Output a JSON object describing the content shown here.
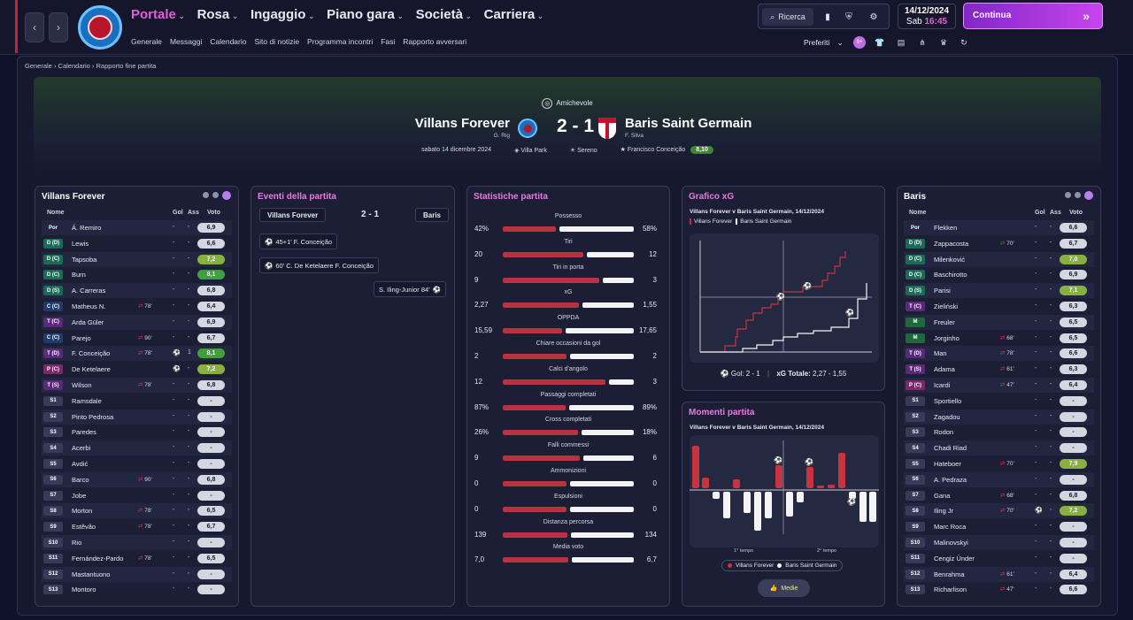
{
  "topbar": {
    "nav_back": "‹",
    "nav_forward": "›",
    "menu": [
      {
        "label": "Portale",
        "active": true
      },
      {
        "label": "Rosa",
        "active": false
      },
      {
        "label": "Ingaggio",
        "active": false
      },
      {
        "label": "Piano gara",
        "active": false
      },
      {
        "label": "Società",
        "active": false
      },
      {
        "label": "Carriera",
        "active": false
      }
    ],
    "submenu": [
      "Generale",
      "Messaggi",
      "Calendario",
      "Sito di notizie",
      "Programma incontri",
      "Fasi",
      "Rapporto avversari"
    ],
    "search_label": "Ricerca",
    "date": "14/12/2024",
    "day": "Sab",
    "time": "16:45",
    "continue_label": "Continua",
    "favorites_label": "Preferiti",
    "badge": "9+"
  },
  "breadcrumb": [
    "Generale",
    "Calendario",
    "Rapporto fine partita"
  ],
  "match": {
    "competition": "Amichevole",
    "home_team": "Villans Forever",
    "home_coach": "G. Rig",
    "away_team": "Baris Saint Germain",
    "away_coach": "F. Silva",
    "score": "2 - 1",
    "date": "sabato 14 dicembre 2024",
    "stadium": "Villa Park",
    "weather": "Sereno",
    "motm": "Francisco Conceição",
    "motm_rating": "8,10"
  },
  "home_panel": {
    "title": "Villans Forever",
    "headers": {
      "name": "Nome",
      "gol": "Gol",
      "ass": "Ass",
      "voto": "Voto"
    },
    "players": [
      {
        "pos": "Por",
        "kind": "gk",
        "name": "Á. Remiro",
        "sub": "",
        "gol": "-",
        "ass": "-",
        "vote": "6,9",
        "vc": ""
      },
      {
        "pos": "D (D)",
        "kind": "d",
        "name": "Lewis",
        "sub": "",
        "gol": "-",
        "ass": "-",
        "vote": "6,6",
        "vc": ""
      },
      {
        "pos": "D (C)",
        "kind": "d",
        "name": "Tapsoba",
        "sub": "",
        "gol": "-",
        "ass": "-",
        "vote": "7,2",
        "vc": "g1"
      },
      {
        "pos": "D (C)",
        "kind": "d",
        "name": "Burn",
        "sub": "",
        "gol": "-",
        "ass": "-",
        "vote": "8,1",
        "vc": "g2"
      },
      {
        "pos": "D (S)",
        "kind": "d",
        "name": "A. Carreras",
        "sub": "",
        "gol": "-",
        "ass": "-",
        "vote": "6,8",
        "vc": ""
      },
      {
        "pos": "C (C)",
        "kind": "c",
        "name": "Matheus N.",
        "sub": "78'",
        "gol": "-",
        "ass": "-",
        "vote": "6,4",
        "vc": ""
      },
      {
        "pos": "T (C)",
        "kind": "t",
        "name": "Arda Güler",
        "sub": "",
        "gol": "-",
        "ass": "-",
        "vote": "6,9",
        "vc": ""
      },
      {
        "pos": "C (C)",
        "kind": "c",
        "name": "Parejo",
        "sub": "90'",
        "gol": "-",
        "ass": "-",
        "vote": "6,7",
        "vc": ""
      },
      {
        "pos": "T (D)",
        "kind": "t",
        "name": "F. Conceição",
        "sub": "78'",
        "gol": "⚽",
        "ass": "1",
        "vote": "8,1",
        "vc": "g2"
      },
      {
        "pos": "P (C)",
        "kind": "p",
        "name": "De Ketelaere",
        "sub": "",
        "gol": "⚽",
        "ass": "-",
        "vote": "7,2",
        "vc": "g1"
      },
      {
        "pos": "T (S)",
        "kind": "t",
        "name": "Wilson",
        "sub": "78'",
        "gol": "-",
        "ass": "-",
        "vote": "6,8",
        "vc": ""
      },
      {
        "pos": "S1",
        "kind": "s",
        "name": "Ramsdale",
        "sub": "",
        "gol": "-",
        "ass": "-",
        "vote": "-",
        "vc": ""
      },
      {
        "pos": "S2",
        "kind": "s",
        "name": "Pinto Pedrosa",
        "sub": "",
        "gol": "-",
        "ass": "-",
        "vote": "-",
        "vc": ""
      },
      {
        "pos": "S3",
        "kind": "s",
        "name": "Paredes",
        "sub": "",
        "gol": "-",
        "ass": "-",
        "vote": "-",
        "vc": ""
      },
      {
        "pos": "S4",
        "kind": "s",
        "name": "Acerbi",
        "sub": "",
        "gol": "-",
        "ass": "-",
        "vote": "-",
        "vc": ""
      },
      {
        "pos": "S5",
        "kind": "s",
        "name": "Avdić",
        "sub": "",
        "gol": "-",
        "ass": "-",
        "vote": "-",
        "vc": ""
      },
      {
        "pos": "S6",
        "kind": "s",
        "name": "Barco",
        "sub": "90'",
        "gol": "-",
        "ass": "-",
        "vote": "6,8",
        "vc": ""
      },
      {
        "pos": "S7",
        "kind": "s",
        "name": "Jobe",
        "sub": "",
        "gol": "-",
        "ass": "-",
        "vote": "-",
        "vc": ""
      },
      {
        "pos": "S8",
        "kind": "s",
        "name": "Morton",
        "sub": "78'",
        "gol": "-",
        "ass": "-",
        "vote": "6,5",
        "vc": ""
      },
      {
        "pos": "S9",
        "kind": "s",
        "name": "Estêvão",
        "sub": "78'",
        "gol": "-",
        "ass": "-",
        "vote": "6,7",
        "vc": ""
      },
      {
        "pos": "S10",
        "kind": "s",
        "name": "Rio",
        "sub": "",
        "gol": "-",
        "ass": "-",
        "vote": "-",
        "vc": ""
      },
      {
        "pos": "S11",
        "kind": "s",
        "name": "Fernández-Pardo",
        "sub": "78'",
        "gol": "-",
        "ass": "-",
        "vote": "6,5",
        "vc": ""
      },
      {
        "pos": "S12",
        "kind": "s",
        "name": "Mastantuono",
        "sub": "",
        "gol": "-",
        "ass": "-",
        "vote": "-",
        "vc": ""
      },
      {
        "pos": "S13",
        "kind": "s",
        "name": "Montoro",
        "sub": "",
        "gol": "-",
        "ass": "-",
        "vote": "-",
        "vc": ""
      }
    ]
  },
  "events": {
    "title": "Eventi della partita",
    "home": "Villans Forever",
    "score": "2 - 1",
    "away": "Baris",
    "items": [
      {
        "side": "home",
        "text": "45+1' F. Conceição"
      },
      {
        "side": "home",
        "text": "60' C. De Ketelaere F. Conceição"
      },
      {
        "side": "away",
        "text": "S. Iling-Junior 84'"
      }
    ]
  },
  "stats": {
    "title": "Statistiche partita",
    "rows": [
      {
        "label": "Possesso",
        "home": "42%",
        "away": "58%",
        "h": 42,
        "a": 58
      },
      {
        "label": "Tiri",
        "home": "20",
        "away": "12",
        "h": 20,
        "a": 12
      },
      {
        "label": "Tiri in porta",
        "home": "9",
        "away": "3",
        "h": 9,
        "a": 3
      },
      {
        "label": "xG",
        "home": "2,27",
        "away": "1,55",
        "h": 2.27,
        "a": 1.55
      },
      {
        "label": "OPPDA",
        "home": "15,59",
        "away": "17,65",
        "h": 15.59,
        "a": 17.65
      },
      {
        "label": "Chiare occasioni da gol",
        "home": "2",
        "away": "2",
        "h": 2,
        "a": 2
      },
      {
        "label": "Calci d'angolo",
        "home": "12",
        "away": "3",
        "h": 12,
        "a": 3
      },
      {
        "label": "Passaggi completati",
        "home": "87%",
        "away": "89%",
        "h": 87,
        "a": 89
      },
      {
        "label": "Cross completati",
        "home": "26%",
        "away": "18%",
        "h": 26,
        "a": 18
      },
      {
        "label": "Falli commessi",
        "home": "9",
        "away": "6",
        "h": 9,
        "a": 6
      },
      {
        "label": "Ammonizioni",
        "home": "0",
        "away": "0",
        "h": 0,
        "a": 0
      },
      {
        "label": "Espulsioni",
        "home": "0",
        "away": "0",
        "h": 0,
        "a": 0
      },
      {
        "label": "Distanza percorsa",
        "home": "139",
        "away": "134",
        "h": 139,
        "a": 134
      },
      {
        "label": "Media voto",
        "home": "7,0",
        "away": "6,7",
        "h": 7.0,
        "a": 6.7
      }
    ]
  },
  "xg_panel": {
    "title": "Grafico xG",
    "subtitle": "Villans Forever v Baris Saint Germain, 14/12/2024",
    "legend_home": "Villans Forever",
    "legend_away": "Baris Saint Germain",
    "footer_goals_label": "Gol:",
    "footer_goals": "2 - 1",
    "footer_xg_label": "xG Totale:",
    "footer_xg": "2,27 - 1,55"
  },
  "moments_panel": {
    "title": "Momenti partita",
    "subtitle": "Villans Forever v Baris Saint Germain, 14/12/2024",
    "first_half": "1° tempo",
    "second_half": "2° tempo",
    "legend_home": "Villans Forever",
    "legend_away": "Baris Saint Germain",
    "medie_label": "Medie"
  },
  "away_panel": {
    "title": "Baris",
    "headers": {
      "name": "Nome",
      "gol": "Gol",
      "ass": "Ass",
      "voto": "Voto"
    },
    "players": [
      {
        "pos": "Por",
        "kind": "gk",
        "name": "Flekken",
        "sub": "",
        "gol": "-",
        "ass": "-",
        "vote": "6,6",
        "vc": ""
      },
      {
        "pos": "D (D)",
        "kind": "d",
        "name": "Zappacosta",
        "sub": "70'",
        "gol": "-",
        "ass": "-",
        "vote": "6,7",
        "vc": ""
      },
      {
        "pos": "D (C)",
        "kind": "d",
        "name": "Milenković",
        "sub": "",
        "gol": "-",
        "ass": "-",
        "vote": "7,0",
        "vc": "g1"
      },
      {
        "pos": "D (C)",
        "kind": "d",
        "name": "Baschirotto",
        "sub": "",
        "gol": "-",
        "ass": "-",
        "vote": "6,9",
        "vc": ""
      },
      {
        "pos": "D (S)",
        "kind": "d",
        "name": "Parisi",
        "sub": "",
        "gol": "-",
        "ass": "-",
        "vote": "7,1",
        "vc": "g1"
      },
      {
        "pos": "T (C)",
        "kind": "t",
        "name": "Zieliński",
        "sub": "",
        "gol": "-",
        "ass": "-",
        "vote": "6,3",
        "vc": ""
      },
      {
        "pos": "M",
        "kind": "m",
        "name": "Freuler",
        "sub": "",
        "gol": "-",
        "ass": "-",
        "vote": "6,5",
        "vc": ""
      },
      {
        "pos": "M",
        "kind": "m",
        "name": "Jorginho",
        "sub": "68'",
        "gol": "-",
        "ass": "-",
        "vote": "6,5",
        "vc": ""
      },
      {
        "pos": "T (D)",
        "kind": "t",
        "name": "Man",
        "sub": "78'",
        "gol": "-",
        "ass": "-",
        "vote": "6,6",
        "vc": ""
      },
      {
        "pos": "T (S)",
        "kind": "t",
        "name": "Adama",
        "sub": "61'",
        "gol": "-",
        "ass": "-",
        "vote": "6,3",
        "vc": ""
      },
      {
        "pos": "P (C)",
        "kind": "p",
        "name": "Icardi",
        "sub": "47'",
        "gol": "-",
        "ass": "-",
        "vote": "6,4",
        "vc": ""
      },
      {
        "pos": "S1",
        "kind": "s",
        "name": "Sportiello",
        "sub": "",
        "gol": "-",
        "ass": "-",
        "vote": "-",
        "vc": ""
      },
      {
        "pos": "S2",
        "kind": "s",
        "name": "Zagadou",
        "sub": "",
        "gol": "-",
        "ass": "-",
        "vote": "-",
        "vc": ""
      },
      {
        "pos": "S3",
        "kind": "s",
        "name": "Rodon",
        "sub": "",
        "gol": "-",
        "ass": "-",
        "vote": "-",
        "vc": ""
      },
      {
        "pos": "S4",
        "kind": "s",
        "name": "Chadi Riad",
        "sub": "",
        "gol": "-",
        "ass": "-",
        "vote": "-",
        "vc": ""
      },
      {
        "pos": "S5",
        "kind": "s",
        "name": "Hateboer",
        "sub": "70'",
        "gol": "-",
        "ass": "-",
        "vote": "7,9",
        "vc": "g1"
      },
      {
        "pos": "S6",
        "kind": "s",
        "name": "A. Pedraza",
        "sub": "",
        "gol": "-",
        "ass": "-",
        "vote": "-",
        "vc": ""
      },
      {
        "pos": "S7",
        "kind": "s",
        "name": "Gana",
        "sub": "68'",
        "gol": "-",
        "ass": "-",
        "vote": "6,8",
        "vc": ""
      },
      {
        "pos": "S8",
        "kind": "s",
        "name": "Iling Jr",
        "sub": "70'",
        "gol": "⚽",
        "ass": "-",
        "vote": "7,2",
        "vc": "g1"
      },
      {
        "pos": "S9",
        "kind": "s",
        "name": "Marc Roca",
        "sub": "",
        "gol": "-",
        "ass": "-",
        "vote": "-",
        "vc": ""
      },
      {
        "pos": "S10",
        "kind": "s",
        "name": "Malinovskyi",
        "sub": "",
        "gol": "-",
        "ass": "-",
        "vote": "-",
        "vc": ""
      },
      {
        "pos": "S11",
        "kind": "s",
        "name": "Cengiz Ünder",
        "sub": "",
        "gol": "-",
        "ass": "-",
        "vote": "-",
        "vc": ""
      },
      {
        "pos": "S12",
        "kind": "s",
        "name": "Benrahma",
        "sub": "61'",
        "gol": "-",
        "ass": "-",
        "vote": "6,4",
        "vc": ""
      },
      {
        "pos": "S13",
        "kind": "s",
        "name": "Richarlison",
        "sub": "47'",
        "gol": "-",
        "ass": "-",
        "vote": "6,6",
        "vc": ""
      }
    ]
  },
  "colors": {
    "home": "#b8323f",
    "away": "#f4f4f6",
    "accent": "#e35fd6",
    "continue": "#a63de0"
  }
}
